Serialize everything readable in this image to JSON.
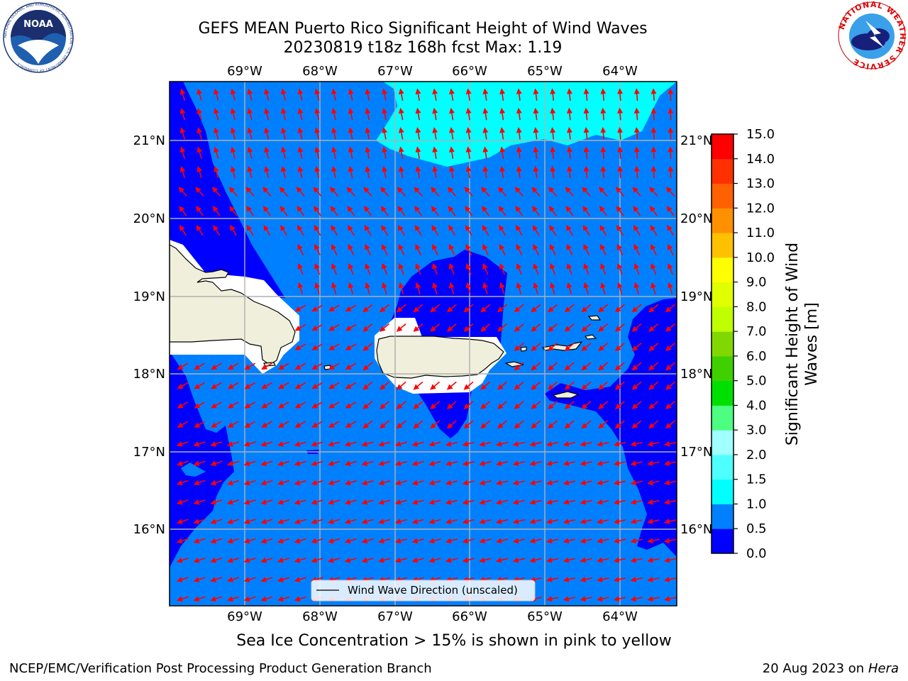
{
  "title_line1": "GEFS MEAN Puerto Rico Significant Height of Wind Waves",
  "title_line2": "20230819 t18z 168h fcst   Max: 1.19",
  "subtitle": "Sea Ice Concentration > 15% is shown in pink to yellow",
  "credit_left": "NCEP/EMC/Verification Post Processing Product Generation Branch",
  "credit_right_date": "20 Aug 2023 on",
  "credit_right_host": "Hera",
  "legend_label": "Wind Wave Direction (unscaled)",
  "logos": {
    "noaa": {
      "text": "NOAA",
      "ring_text": "NATIONAL OCEANIC AND ATMOSPHERIC ADMINISTRATION · U.S. DEPARTMENT OF COMMERCE"
    },
    "nws": {
      "ring_text": "NATIONAL WEATHER SERVICE"
    }
  },
  "colors": {
    "ocean_low": "#0000ff",
    "ocean_mid": "#0080ff",
    "ocean_high": "#00ffff",
    "land": "#efefdb",
    "arrows": "#ff0000"
  },
  "map": {
    "lon_labels": [
      "69°W",
      "68°W",
      "67°W",
      "66°W",
      "65°W",
      "64°W"
    ],
    "lat_labels": [
      "21°N",
      "20°N",
      "19°N",
      "18°N",
      "17°N",
      "16°N"
    ]
  },
  "colorbar": {
    "label_line1": "Significant Height of Wind",
    "label_line2": "Waves [m]",
    "ticks": [
      "0.0",
      "0.5",
      "1.0",
      "1.5",
      "2.0",
      "3.0",
      "4.0",
      "5.0",
      "6.0",
      "7.0",
      "8.0",
      "9.0",
      "10.0",
      "11.0",
      "12.0",
      "13.0",
      "14.0",
      "15.0"
    ],
    "colors": [
      "#0000ff",
      "#0080ff",
      "#00ffff",
      "#4dffff",
      "#a0ffff",
      "#4dff80",
      "#00e000",
      "#40d000",
      "#80d800",
      "#c0ff00",
      "#e0ff00",
      "#ffff00",
      "#ffc000",
      "#ff9000",
      "#ff6000",
      "#ff3000",
      "#ff0000"
    ]
  }
}
